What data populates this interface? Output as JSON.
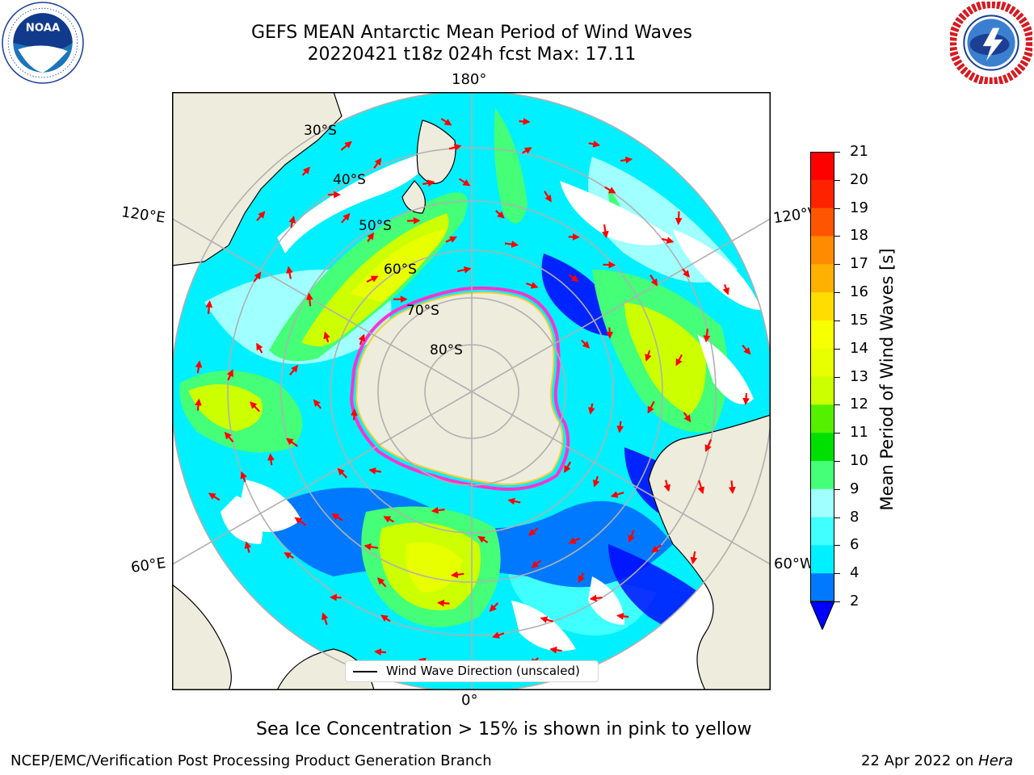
{
  "header": {
    "title_line1": "GEFS MEAN Antarctic Mean Period of Wind Waves",
    "title_line2": "20220421 t18z 024h fcst   Max: 17.11"
  },
  "logos": {
    "left": "noaa-logo",
    "right": "national-weather-service-logo"
  },
  "map": {
    "projection": "south-polar-stereographic",
    "longitude_labels": {
      "top": "180°",
      "bottom": "0°",
      "upper_left": "120°E",
      "upper_right": "120°W",
      "lower_left": "60°E",
      "lower_right": "60°W"
    },
    "latitude_labels": [
      "30°S",
      "40°S",
      "50°S",
      "60°S",
      "70°S",
      "80°S"
    ],
    "land_color": "#eeecdc",
    "ice_edge_colors": [
      "#ff33cc",
      "#ffcc33"
    ],
    "legend_label": "Wind Wave Direction (unscaled)",
    "arrow_color": "#ff0000"
  },
  "colorbar": {
    "label": "Mean Period of Wind Waves [s]",
    "tick_labels": [
      "21",
      "20",
      "19",
      "18",
      "17",
      "16",
      "15",
      "14",
      "13",
      "12",
      "11",
      "10",
      "9",
      "8",
      "6",
      "4",
      "2"
    ],
    "levels_colors": [
      "#0000ff",
      "#0079ff",
      "#00f0ff",
      "#40ffff",
      "#a0ffff",
      "#44ff77",
      "#00e000",
      "#55f000",
      "#ccff00",
      "#e8ff00",
      "#f8ff00",
      "#ffdd00",
      "#ffb000",
      "#ff8c00",
      "#ff5500",
      "#ff2200",
      "#ff0000"
    ]
  },
  "caption": "Sea Ice Concentration > 15% is shown in pink to yellow",
  "footer": {
    "left": "NCEP/EMC/Verification Post Processing Product Generation Branch",
    "right_prefix": "22 Apr 2022 on ",
    "right_host": "Hera"
  }
}
